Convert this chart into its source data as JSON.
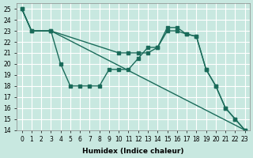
{
  "xlabel": "Humidex (Indice chaleur)",
  "ylabel": "",
  "bg_color": "#c8e8e0",
  "grid_color": "#ffffff",
  "line_color": "#1a6b5a",
  "xlim": [
    -0.5,
    23.5
  ],
  "ylim": [
    14,
    25.5
  ],
  "yticks": [
    14,
    15,
    16,
    17,
    18,
    19,
    20,
    21,
    22,
    23,
    24,
    25
  ],
  "xticks": [
    0,
    1,
    2,
    3,
    4,
    5,
    6,
    7,
    8,
    9,
    10,
    11,
    12,
    13,
    14,
    15,
    16,
    17,
    18,
    19,
    20,
    21,
    22,
    23
  ],
  "line1_x": [
    0,
    1,
    3,
    4,
    5,
    6,
    7,
    8,
    9,
    10,
    11,
    12,
    13,
    14,
    15,
    16,
    17,
    18,
    19,
    20,
    21,
    22,
    23
  ],
  "line1_y": [
    25,
    23,
    23,
    20,
    18,
    18,
    18,
    18,
    19.5,
    19.5,
    19.5,
    20.5,
    21.5,
    21.5,
    23,
    23,
    22.7,
    22.5,
    19.5,
    18,
    16,
    15,
    14
  ],
  "line2_x": [
    0,
    1,
    3,
    10,
    11,
    12,
    13,
    14,
    15,
    16,
    17,
    18,
    19,
    20,
    21,
    22,
    23
  ],
  "line2_y": [
    25,
    23,
    23,
    21,
    21,
    21,
    21,
    21.5,
    23.3,
    23.3,
    22.7,
    22.5,
    19.5,
    18,
    16,
    15,
    14
  ],
  "line3_x": [
    0,
    1,
    3,
    23
  ],
  "line3_y": [
    25,
    23,
    23,
    14
  ]
}
